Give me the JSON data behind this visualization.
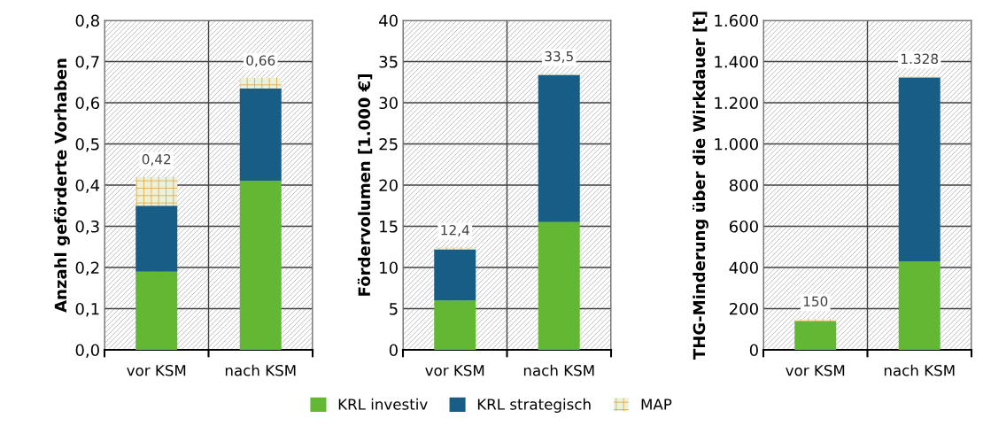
{
  "chart_data": [
    {
      "type": "bar",
      "stacked": true,
      "ylabel": "Anzahl geförderte Vorhaben",
      "categories": [
        "vor KSM",
        "nach KSM"
      ],
      "series": [
        {
          "color": "#62b832",
          "values": [
            0.19,
            0.41
          ]
        },
        {
          "color": "#175d85",
          "values": [
            0.16,
            0.225
          ]
        },
        {
          "color": "#e8a33a",
          "values": [
            0.07,
            0.025
          ]
        }
      ],
      "totals": [
        "0,42",
        "0,66"
      ],
      "ylim": [
        0,
        0.8
      ],
      "yticks": [
        {
          "value": 0,
          "label": "0,0"
        },
        {
          "value": 0.1,
          "label": "0,1"
        },
        {
          "value": 0.2,
          "label": "0,2"
        },
        {
          "value": 0.3,
          "label": "0,3"
        },
        {
          "value": 0.4,
          "label": "0,4"
        },
        {
          "value": 0.5,
          "label": "0,5"
        },
        {
          "value": 0.6,
          "label": "0,6"
        },
        {
          "value": 0.7,
          "label": "0,7"
        },
        {
          "value": 0.8,
          "label": "0,8"
        }
      ],
      "grid": true
    },
    {
      "type": "bar",
      "stacked": true,
      "ylabel": "Fördervolumen [1.000 €]",
      "categories": [
        "vor KSM",
        "nach KSM"
      ],
      "series": [
        {
          "name": "KRL investiv",
          "color": "#62b832",
          "values": [
            6.0,
            15.5
          ]
        },
        {
          "name": "KRL strategisch",
          "color": "#175d85",
          "values": [
            6.2,
            17.9
          ]
        },
        {
          "name": "MAP",
          "color": "#e8a33a",
          "values": [
            0.2,
            0.1
          ]
        }
      ],
      "totals": [
        "12,4",
        "33,5"
      ],
      "ylim": [
        0,
        40
      ],
      "yticks": [
        0,
        5,
        10,
        15,
        20,
        25,
        30,
        35,
        40
      ],
      "grid": true,
      "legend": "bottom"
    },
    {
      "type": "bar",
      "stacked": true,
      "ylabel": "THG-Minderung über die Wirkdauer [t]",
      "categories": [
        "vor KSM",
        "nach KSM"
      ],
      "series": [
        {
          "color": "#62b832",
          "values": [
            138,
            430
          ]
        },
        {
          "color": "#175d85",
          "values": [
            null,
            893
          ]
        },
        {
          "color": "#e8a33a",
          "values": [
            12,
            5
          ]
        }
      ],
      "totals": [
        "150",
        "1.328"
      ],
      "ylim": [
        0,
        1600
      ],
      "yticks": [
        0,
        200,
        400,
        600,
        800,
        {
          "value": 1000,
          "label": "1.000"
        },
        {
          "value": 1200,
          "label": "1.200"
        },
        {
          "value": 1400,
          "label": "1.400"
        },
        {
          "value": 1600,
          "label": "1.600"
        }
      ],
      "grid": true
    }
  ]
}
